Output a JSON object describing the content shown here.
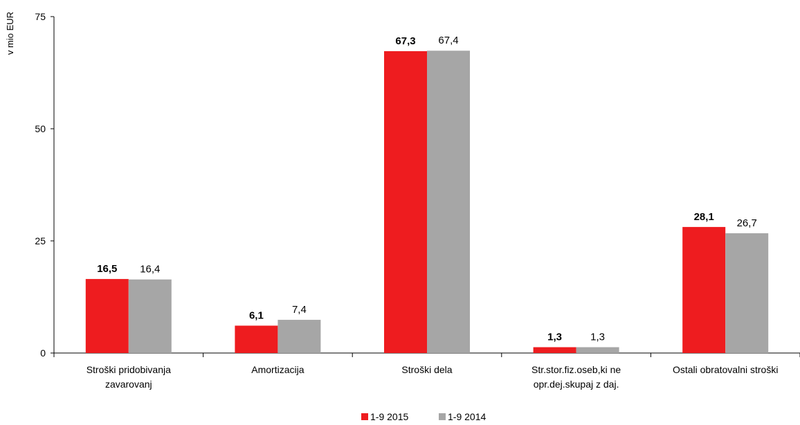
{
  "chart_data": {
    "type": "bar",
    "ylabel": "v mio EUR",
    "ylim": [
      0,
      75
    ],
    "yticks": [
      "0",
      "25",
      "50",
      "75"
    ],
    "categories": [
      [
        "Stroški pridobivanja",
        "zavarovanj"
      ],
      [
        "Amortizacija"
      ],
      [
        "Stroški dela"
      ],
      [
        "Str.stor.fiz.oseb,ki ne",
        "opr.dej.skupaj z daj."
      ],
      [
        "Ostali obratovalni stroški"
      ]
    ],
    "series": [
      {
        "name": "1-9 2015",
        "color": "#ee1c1f",
        "values": [
          16.5,
          6.1,
          67.3,
          1.3,
          28.1
        ],
        "labels": [
          "16,5",
          "6,1",
          "67,3",
          "1,3",
          "28,1"
        ],
        "label_bold": true
      },
      {
        "name": "1-9 2014",
        "color": "#a6a6a6",
        "values": [
          16.4,
          7.4,
          67.4,
          1.3,
          26.7
        ],
        "labels": [
          "16,4",
          "7,4",
          "67,4",
          "1,3",
          "26,7"
        ],
        "label_bold": false
      }
    ],
    "grid": false,
    "legend_position": "bottom-center"
  }
}
